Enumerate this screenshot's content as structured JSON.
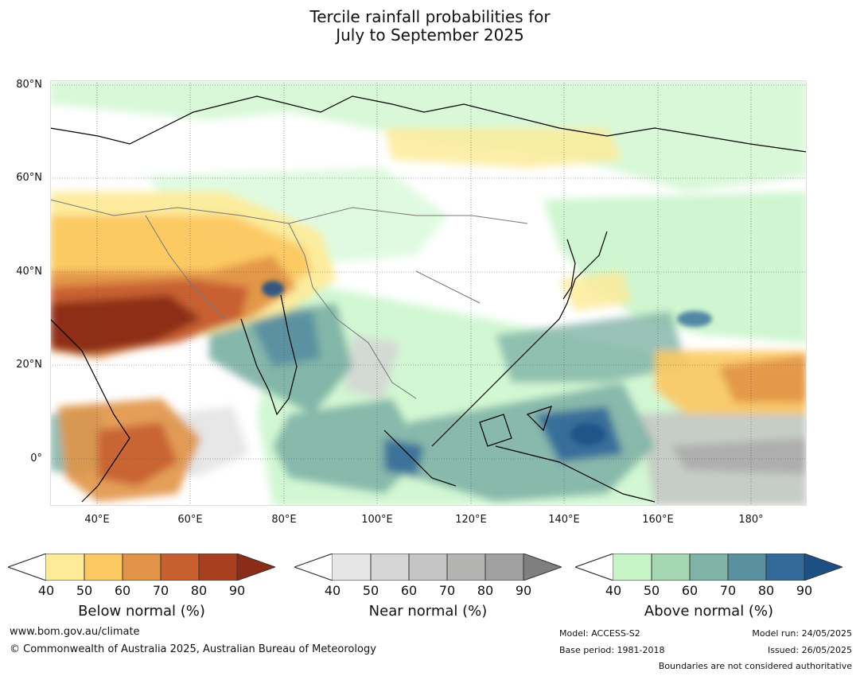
{
  "title": {
    "line1": "Tercile rainfall probabilities for",
    "line2": "July to September 2025"
  },
  "map": {
    "lat_labels": [
      "80°N",
      "60°N",
      "40°N",
      "20°N",
      "0°"
    ],
    "lon_labels": [
      "40°E",
      "60°E",
      "80°E",
      "100°E",
      "120°E",
      "140°E",
      "160°E",
      "180°"
    ],
    "lat_range": [
      -10,
      80
    ],
    "lon_range": [
      30,
      192
    ],
    "colors": {
      "below": [
        "#fdeb9a",
        "#fcc862",
        "#e19347",
        "#c75f2f",
        "#a8401f",
        "#8b2c18"
      ],
      "near": [
        "#e4e4e4",
        "#d3d3d3",
        "#c3c3c3",
        "#a9a9a9",
        "#8c8c8c"
      ],
      "above": [
        "#c7f5c8",
        "#a4d6b1",
        "#7fb3a6",
        "#5a8fa0",
        "#346a99",
        "#1d4f84"
      ]
    }
  },
  "colorbars": [
    {
      "title": "Below normal (%)",
      "ticks": [
        "40",
        "50",
        "60",
        "70",
        "80",
        "90"
      ],
      "colors": [
        "#fdeb9a",
        "#fcc862",
        "#e19347",
        "#c75f2f",
        "#a8401f",
        "#8b2c18"
      ]
    },
    {
      "title": "Near normal (%)",
      "ticks": [
        "40",
        "50",
        "60",
        "70",
        "80",
        "90"
      ],
      "colors": [
        "#e6e6e6",
        "#d6d6d6",
        "#c5c5c5",
        "#b3b3b1",
        "#a1a1a1",
        "#7f7f7f"
      ]
    },
    {
      "title": "Above normal (%)",
      "ticks": [
        "40",
        "50",
        "60",
        "70",
        "80",
        "90"
      ],
      "colors": [
        "#c7f5c8",
        "#a4d6b1",
        "#7fb3a6",
        "#5a8fa0",
        "#346a99",
        "#1d4f84"
      ]
    }
  ],
  "footer": {
    "website": "www.bom.gov.au/climate",
    "copyright": "© Commonwealth of Australia 2025, Australian Bureau of Meteorology",
    "model": "Model: ACCESS-S2",
    "base_period": "Base period: 1981-2018",
    "model_run": "Model run: 24/05/2025",
    "issued": "Issued: 26/05/2025",
    "disclaimer": "Boundaries are not considered authoritative"
  }
}
